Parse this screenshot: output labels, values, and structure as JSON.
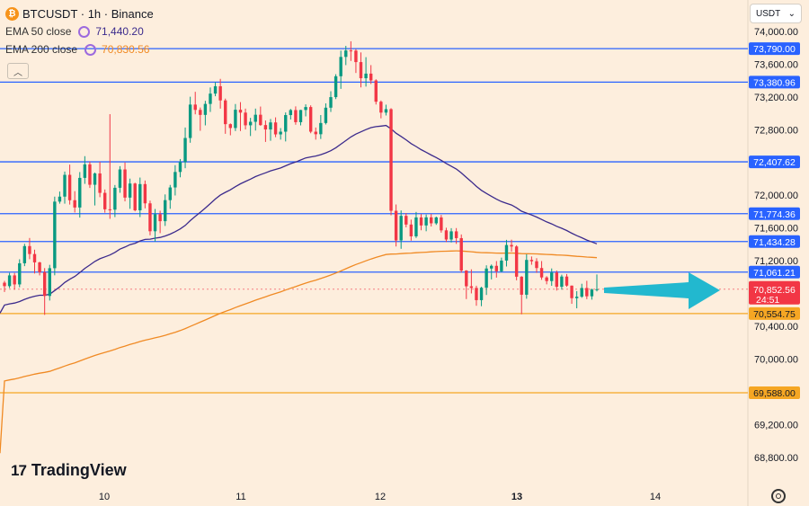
{
  "header": {
    "symbol": "BTCUSDT · 1h · Binance",
    "coin_icon": "bitcoin-icon",
    "ema50_label": "EMA 50 close",
    "ema50_value": "71,440.20",
    "ema200_label": "EMA 200 close",
    "ema200_value": "70,830.56",
    "ema50_color": "#3b2a8c",
    "ema200_color": "#f08a24"
  },
  "currency_selector": "USDT",
  "brand": "TradingView",
  "chart_data": {
    "type": "candlestick",
    "y_axis": {
      "range": [
        68600,
        74200
      ],
      "tick_labels": [
        "74,000.00",
        "73,600.00",
        "73,200.00",
        "72,800.00",
        "72,000.00",
        "71,600.00",
        "71,200.00",
        "70,400.00",
        "70,000.00",
        "69,200.00",
        "68,800.00"
      ]
    },
    "x_axis": {
      "tick_labels": [
        "10",
        "11",
        "12",
        "13",
        "14"
      ]
    },
    "horizontal_levels": [
      {
        "label": "73,790.00",
        "value": 73790,
        "color": "#2962ff"
      },
      {
        "label": "73,380.96",
        "value": 73380.96,
        "color": "#2962ff"
      },
      {
        "label": "72,407.62",
        "value": 72407.62,
        "color": "#2962ff"
      },
      {
        "label": "71,774.36",
        "value": 71774.36,
        "color": "#2962ff"
      },
      {
        "label": "71,434.28",
        "value": 71434.28,
        "color": "#2962ff"
      },
      {
        "label": "71,061.21",
        "value": 71061.21,
        "color": "#2962ff"
      },
      {
        "label": "70,554.75",
        "value": 70554.75,
        "color": "#f5a623"
      },
      {
        "label": "69,588.00",
        "value": 69588,
        "color": "#f5a623"
      }
    ],
    "current_price": {
      "label": "70,852.56",
      "countdown": "24:51",
      "value": 70852.56,
      "color": "#f23645"
    },
    "up_color": "#089981",
    "down_color": "#f23645",
    "arrow_color": "#22b8cf",
    "candles": [
      [
        70932,
        70954,
        70819,
        70890
      ],
      [
        70890,
        71052,
        70866,
        71021
      ],
      [
        71021,
        71051,
        70847,
        70911
      ],
      [
        70911,
        71218,
        70876,
        71169
      ],
      [
        71169,
        71407,
        71134,
        71379
      ],
      [
        71379,
        71478,
        71219,
        71282
      ],
      [
        71282,
        71335,
        71044,
        71180
      ],
      [
        71180,
        71187,
        71021,
        71060
      ],
      [
        71060,
        71110,
        70539,
        70770
      ],
      [
        70770,
        71150,
        70714,
        71109
      ],
      [
        71109,
        71983,
        71022,
        71922
      ],
      [
        71922,
        72045,
        71897,
        71983
      ],
      [
        71983,
        72289,
        71897,
        72249
      ],
      [
        72249,
        72374,
        71886,
        71939
      ],
      [
        71939,
        72050,
        71789,
        71850
      ],
      [
        71850,
        72283,
        71727,
        72212
      ],
      [
        72212,
        72477,
        72139,
        72377
      ],
      [
        72377,
        72410,
        72089,
        72128
      ],
      [
        72128,
        72277,
        71875,
        72266
      ],
      [
        72266,
        72408,
        71976,
        72029
      ],
      [
        72029,
        72070,
        71787,
        71828
      ],
      [
        71828,
        72990,
        71712,
        71824
      ],
      [
        71824,
        72125,
        71733,
        72091
      ],
      [
        72091,
        72355,
        72030,
        72315
      ],
      [
        72315,
        72400,
        71925,
        71971
      ],
      [
        71971,
        72203,
        71834,
        72143
      ],
      [
        72143,
        72153,
        71803,
        71816
      ],
      [
        71816,
        72216,
        71733,
        72136
      ],
      [
        72136,
        72180,
        71840,
        71901
      ],
      [
        71901,
        71934,
        71511,
        71560
      ],
      [
        71560,
        71832,
        71434,
        71768
      ],
      [
        71768,
        71811,
        71537,
        71683
      ],
      [
        71683,
        72010,
        71625,
        71940
      ],
      [
        71940,
        72126,
        71834,
        72095
      ],
      [
        72095,
        72367,
        71997,
        72284
      ],
      [
        72284,
        72442,
        72219,
        72405
      ],
      [
        72405,
        72827,
        72330,
        72699
      ],
      [
        72699,
        73203,
        72641,
        73107
      ],
      [
        73107,
        73263,
        72988,
        73042
      ],
      [
        73042,
        73071,
        72787,
        72981
      ],
      [
        72981,
        73153,
        72853,
        73115
      ],
      [
        73115,
        73316,
        73017,
        73241
      ],
      [
        73241,
        73380,
        73209,
        73331
      ],
      [
        73331,
        73421,
        73058,
        73158
      ],
      [
        73158,
        73180,
        72750,
        72868
      ],
      [
        72868,
        72877,
        72732,
        72821
      ],
      [
        72821,
        73114,
        72784,
        73044
      ],
      [
        73044,
        73137,
        72784,
        73009
      ],
      [
        73009,
        73058,
        72803,
        72854
      ],
      [
        72854,
        72945,
        72723,
        72897
      ],
      [
        72897,
        73058,
        72790,
        72983
      ],
      [
        72983,
        73083,
        72848,
        72857
      ],
      [
        72857,
        72913,
        72651,
        72803
      ],
      [
        72803,
        72931,
        72665,
        72889
      ],
      [
        72889,
        72951,
        72709,
        72743
      ],
      [
        72743,
        72820,
        72679,
        72776
      ],
      [
        72776,
        73011,
        72657,
        72979
      ],
      [
        72979,
        73054,
        72925,
        73040
      ],
      [
        73040,
        73085,
        72861,
        72892
      ],
      [
        72892,
        73042,
        72853,
        73041
      ],
      [
        73041,
        73110,
        72963,
        73077
      ],
      [
        73077,
        73098,
        72757,
        72776
      ],
      [
        72776,
        72827,
        72679,
        72745
      ],
      [
        72745,
        72979,
        72687,
        72882
      ],
      [
        72882,
        73122,
        72864,
        73069
      ],
      [
        73069,
        73270,
        73017,
        73198
      ],
      [
        73198,
        73478,
        73174,
        73453
      ],
      [
        73453,
        73766,
        73299,
        73689
      ],
      [
        73689,
        73824,
        73589,
        73768
      ],
      [
        73768,
        73880,
        73640,
        73766
      ],
      [
        73766,
        73785,
        73493,
        73626
      ],
      [
        73626,
        73744,
        73317,
        73429
      ],
      [
        73429,
        73686,
        73327,
        73485
      ],
      [
        73485,
        73589,
        73358,
        73402
      ],
      [
        73402,
        73416,
        73108,
        73142
      ],
      [
        73142,
        73157,
        72939,
        73009
      ],
      [
        73009,
        73106,
        72974,
        73051
      ],
      [
        73051,
        73063,
        71755,
        71810
      ],
      [
        71810,
        71887,
        71374,
        71448
      ],
      [
        71448,
        71814,
        71346,
        71748
      ],
      [
        71748,
        71782,
        71608,
        71642
      ],
      [
        71642,
        71702,
        71445,
        71498
      ],
      [
        71498,
        71796,
        71478,
        71729
      ],
      [
        71729,
        71770,
        71572,
        71631
      ],
      [
        71631,
        71764,
        71560,
        71730
      ],
      [
        71730,
        71771,
        71618,
        71657
      ],
      [
        71657,
        71739,
        71638,
        71729
      ],
      [
        71729,
        71759,
        71543,
        71571
      ],
      [
        71571,
        71603,
        71428,
        71459
      ],
      [
        71459,
        71598,
        71423,
        71559
      ],
      [
        71559,
        71599,
        71406,
        71476
      ],
      [
        71476,
        71521,
        71055,
        71080
      ],
      [
        71080,
        71085,
        70732,
        70888
      ],
      [
        70888,
        71095,
        70801,
        70868
      ],
      [
        70868,
        70895,
        70650,
        70719
      ],
      [
        70719,
        70882,
        70645,
        70870
      ],
      [
        70870,
        71144,
        70782,
        71105
      ],
      [
        71105,
        71154,
        70972,
        71138
      ],
      [
        71138,
        71196,
        70994,
        71071
      ],
      [
        71071,
        71238,
        71058,
        71202
      ],
      [
        71202,
        71455,
        71130,
        71392
      ],
      [
        71392,
        71457,
        71312,
        71374
      ],
      [
        71374,
        71389,
        70961,
        71005
      ],
      [
        71005,
        71012,
        70546,
        70785
      ],
      [
        70785,
        71279,
        70736,
        71210
      ],
      [
        71210,
        71252,
        71151,
        71194
      ],
      [
        71194,
        71231,
        71052,
        71111
      ],
      [
        71111,
        71196,
        70967,
        70996
      ],
      [
        70996,
        71011,
        70912,
        70952
      ],
      [
        70952,
        71106,
        70894,
        71056
      ],
      [
        71056,
        71080,
        70836,
        70882
      ],
      [
        70882,
        71030,
        70847,
        71007
      ],
      [
        71007,
        71038,
        70881,
        70896
      ],
      [
        70896,
        70898,
        70674,
        70743
      ],
      [
        70743,
        70829,
        70619,
        70761
      ],
      [
        70761,
        70919,
        70747,
        70867
      ],
      [
        70867,
        70955,
        70731,
        70766
      ],
      [
        70766,
        70860,
        70725,
        70848
      ],
      [
        70848,
        71033,
        70825,
        70852
      ]
    ]
  }
}
